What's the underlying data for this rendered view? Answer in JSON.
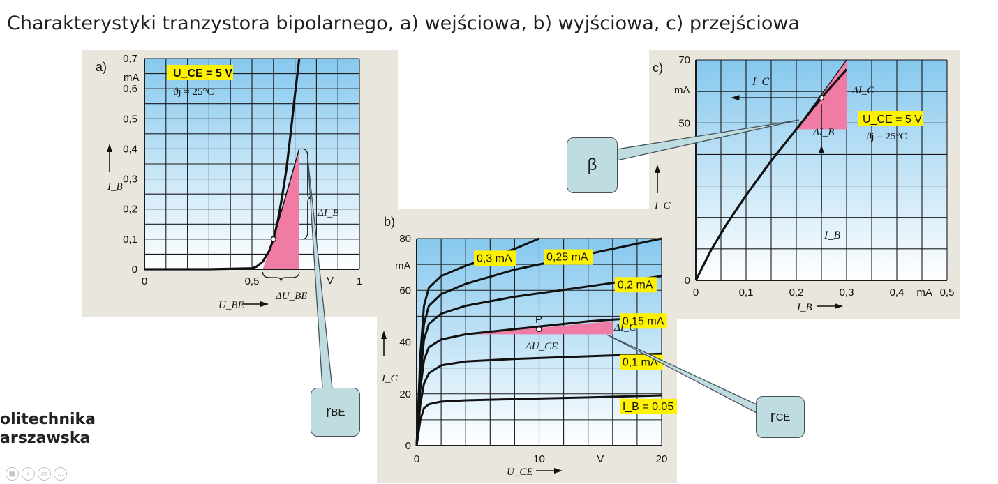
{
  "slide": {
    "title": "Charakterystyki tranzystora bipolarnego, a) wejściowa, b) wyjściowa, c) przejściowa"
  },
  "logo": {
    "line1": "olitechnika",
    "line2": "arszawska"
  },
  "toolbar": [
    {
      "icon": "slides-icon",
      "glyph": "▦"
    },
    {
      "icon": "zoom-icon",
      "glyph": "⌕"
    },
    {
      "icon": "subtitles-icon",
      "glyph": "▭"
    },
    {
      "icon": "more-icon",
      "glyph": "…"
    }
  ],
  "callouts": {
    "rbe": {
      "main": "r",
      "sub": "BE"
    },
    "beta": {
      "main": "β",
      "sub": ""
    },
    "rce": {
      "main": "r",
      "sub": "CE"
    }
  },
  "colors": {
    "paper": "#e9e6de",
    "sky_top": "#86c8ee",
    "sky_bottom": "#ffffff",
    "pink": "#ef7ca4",
    "label_bg": "#fff200",
    "callout_bg": "#bfdde1",
    "grid": "#1a1a1a"
  },
  "chart_data": [
    {
      "panel_label": "a)",
      "type": "line",
      "xlabel": "U_BE",
      "ylabel": "I_B",
      "x_unit": "V",
      "y_unit": "mA",
      "xlim": [
        0,
        1
      ],
      "ylim": [
        0,
        0.7
      ],
      "x_ticks": [
        "0",
        "0,5",
        "V",
        "1"
      ],
      "y_ticks": [
        "0",
        "0,1",
        "0,2",
        "0,3",
        "0,4",
        "0,5",
        "0,6",
        "0,7"
      ],
      "condition1": "U_CE = 5 V",
      "condition2": "ϑj = 25°C",
      "series": [
        {
          "x": [
            0,
            0.3,
            0.5,
            0.52,
            0.55,
            0.58,
            0.6,
            0.62,
            0.64,
            0.66,
            0.68,
            0.7,
            0.72
          ],
          "y": [
            0,
            0,
            0.003,
            0.008,
            0.025,
            0.06,
            0.1,
            0.16,
            0.24,
            0.33,
            0.45,
            0.58,
            0.7
          ]
        }
      ],
      "annotations": {
        "delta_y": "ΔI_B",
        "delta_x": "ΔU_BE",
        "point": {
          "x": 0.6,
          "y": 0.1
        }
      }
    },
    {
      "panel_label": "b)",
      "type": "line",
      "xlabel": "U_CE",
      "ylabel": "I_C",
      "x_unit": "V",
      "y_unit": "mA",
      "xlim": [
        0,
        20
      ],
      "ylim": [
        0,
        80
      ],
      "x_ticks": [
        "0",
        "10",
        "V",
        "20"
      ],
      "y_ticks": [
        "0",
        "20",
        "40",
        "60",
        "80"
      ],
      "series": [
        {
          "name": "I_B = 0,05 mA",
          "x": [
            0,
            0.3,
            0.6,
            1,
            2,
            4,
            8,
            14,
            20
          ],
          "y": [
            0,
            10,
            14.5,
            16,
            17,
            17.5,
            18,
            18.6,
            19.4
          ]
        },
        {
          "name": "0,1 mA",
          "x": [
            0,
            0.3,
            0.6,
            1,
            2,
            4,
            8,
            14,
            20
          ],
          "y": [
            0,
            16,
            24,
            28,
            31,
            32.5,
            33.5,
            34.5,
            35.5
          ]
        },
        {
          "name": "0,15 mA",
          "x": [
            0,
            0.3,
            0.6,
            1,
            2,
            4,
            8,
            14,
            20
          ],
          "y": [
            0,
            22,
            33,
            38,
            41,
            43,
            45,
            48,
            50
          ]
        },
        {
          "name": "0,2 mA",
          "x": [
            0,
            0.3,
            0.6,
            1,
            2,
            4,
            8,
            14,
            20
          ],
          "y": [
            0,
            27,
            41,
            47,
            51,
            54,
            57.5,
            61.5,
            65.5
          ]
        },
        {
          "name": "0,25 mA",
          "x": [
            0,
            0.3,
            0.6,
            1,
            2,
            4,
            8,
            14,
            20
          ],
          "y": [
            0,
            31,
            47,
            54,
            58.5,
            62.5,
            68,
            74,
            80
          ]
        },
        {
          "name": "0,3 mA",
          "x": [
            0,
            0.3,
            0.6,
            1,
            2,
            4,
            8,
            10
          ],
          "y": [
            0,
            35,
            54,
            61,
            65.5,
            69.5,
            76,
            80
          ]
        }
      ],
      "point_label": "P",
      "point": {
        "x": 10,
        "y": 45
      },
      "annotations": {
        "delta_y": "ΔI_C",
        "delta_x": "ΔU_CE"
      }
    },
    {
      "panel_label": "c)",
      "type": "line",
      "xlabel": "I_B",
      "ylabel": "I_C",
      "x_unit": "mA",
      "y_unit": "mA",
      "xlim": [
        0,
        0.5
      ],
      "ylim": [
        0,
        70
      ],
      "x_ticks": [
        "0",
        "0,1",
        "0,2",
        "0,3",
        "0,4",
        "mA",
        "0,5"
      ],
      "y_ticks": [
        "0",
        "50",
        "70"
      ],
      "condition1": "U_CE = 5 V",
      "condition2": "ϑj = 25°C",
      "series": [
        {
          "x": [
            0,
            0.03,
            0.06,
            0.1,
            0.15,
            0.2,
            0.25,
            0.3
          ],
          "y": [
            0,
            9.5,
            17.5,
            27,
            38,
            48,
            58,
            67
          ]
        }
      ],
      "point": {
        "x": 0.25,
        "y": 58
      },
      "annotations": {
        "arrow_ic": "I_C",
        "arrow_ib": "I_B",
        "delta_y": "ΔI_C",
        "delta_x": "ΔI_B"
      }
    }
  ]
}
